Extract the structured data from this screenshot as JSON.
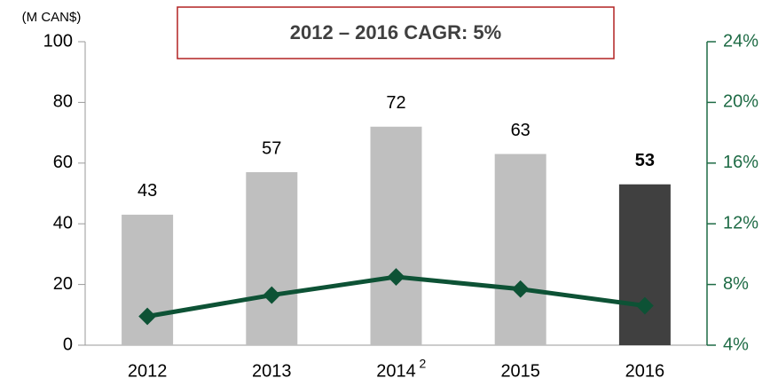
{
  "chart_data": {
    "type": "bar_line",
    "unit_label": "(M CAN$)",
    "annotation": "2012 – 2016 CAGR: 5%",
    "categories": [
      "2012",
      "2013",
      "2014",
      "2015",
      "2016"
    ],
    "category_superscripts": [
      null,
      null,
      "2",
      null,
      null
    ],
    "values": [
      43,
      57,
      72,
      63,
      53
    ],
    "colors": [
      "#bfbfbf",
      "#bfbfbf",
      "#bfbfbf",
      "#bfbfbf",
      "#404040"
    ],
    "bold_labels": [
      false,
      false,
      false,
      false,
      true
    ],
    "line": {
      "values": [
        5.9,
        7.3,
        8.5,
        7.7,
        6.6
      ],
      "color": "#0d5235",
      "axis": "y2"
    },
    "ylim": [
      0,
      100
    ],
    "yticks": [
      0,
      20,
      40,
      60,
      80,
      100
    ],
    "y2lim": [
      4,
      24
    ],
    "y2ticks": [
      {
        "value": 4,
        "label": "4%"
      },
      {
        "value": 8,
        "label": "8%"
      },
      {
        "value": 12,
        "label": "12%"
      },
      {
        "value": 16,
        "label": "16%"
      },
      {
        "value": 20,
        "label": "20%"
      },
      {
        "value": 24,
        "label": "24%"
      }
    ],
    "y2color": "#1e6b45"
  }
}
